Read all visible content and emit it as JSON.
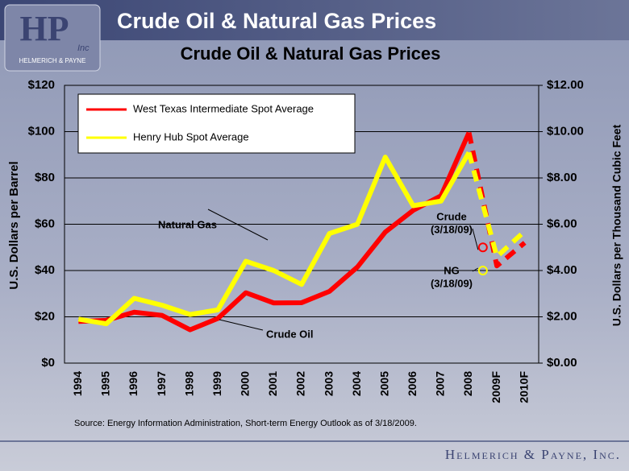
{
  "slide": {
    "title": "Crude Oil & Natural Gas Prices",
    "logo_mark": "HP",
    "logo_sub": "Inc",
    "logo_name": "HELMERICH & PAYNE",
    "footer": "Helmerich & Payne, Inc.",
    "source": "Source:  Energy Information Administration, Short-term Energy Outlook as of 3/18/2009."
  },
  "chart_data": {
    "type": "line",
    "title": "Crude Oil & Natural Gas Prices",
    "categories": [
      "1994",
      "1995",
      "1996",
      "1997",
      "1998",
      "1999",
      "2000",
      "2001",
      "2002",
      "2003",
      "2004",
      "2005",
      "2006",
      "2007",
      "2008",
      "2009F",
      "2010F"
    ],
    "series": [
      {
        "name": "West Texas Intermediate Spot Average",
        "color": "#ff0000",
        "axis": "y",
        "values": [
          18,
          18.5,
          22,
          20.6,
          14.4,
          19.3,
          30.4,
          26,
          26.1,
          31,
          41.5,
          56.6,
          66,
          72.3,
          99.6,
          42,
          52
        ]
      },
      {
        "name": "Henry Hub Spot Average",
        "color": "#ffff00",
        "axis": "y2",
        "values": [
          1.9,
          1.7,
          2.8,
          2.5,
          2.1,
          2.3,
          4.4,
          4.0,
          3.4,
          5.6,
          6.0,
          8.9,
          6.8,
          7.0,
          9.1,
          4.6,
          5.7
        ]
      }
    ],
    "ylabel": "U.S. Dollars per Barrel",
    "y2label": "U.S. Dollars per Thousand Cubic Feet",
    "ylim": [
      0,
      120
    ],
    "yticks": [
      {
        "value": 0,
        "label": "$0"
      },
      {
        "value": 20,
        "label": "$20"
      },
      {
        "value": 40,
        "label": "$40"
      },
      {
        "value": 60,
        "label": "$60"
      },
      {
        "value": 80,
        "label": "$80"
      },
      {
        "value": 100,
        "label": "$100"
      },
      {
        "value": 120,
        "label": "$120"
      }
    ],
    "y2lim": [
      0,
      12
    ],
    "y2ticks": [
      {
        "value": 0,
        "label": "$0.00"
      },
      {
        "value": 2,
        "label": "$2.00"
      },
      {
        "value": 4,
        "label": "$4.00"
      },
      {
        "value": 6,
        "label": "$6.00"
      },
      {
        "value": 8,
        "label": "$8.00"
      },
      {
        "value": 10,
        "label": "$10.00"
      },
      {
        "value": 12,
        "label": "$12.00"
      }
    ],
    "grid": true,
    "legend": "upper left",
    "markers": [
      {
        "label": [
          "Crude",
          "(3/18/09)"
        ],
        "value": 50,
        "axis": "y",
        "color": "#ff0000"
      },
      {
        "label": [
          "NG",
          "(3/18/09)"
        ],
        "value": 4,
        "axis": "y2",
        "color": "#ffff00"
      }
    ],
    "annotations": [
      "Natural Gas",
      "Crude Oil"
    ]
  }
}
